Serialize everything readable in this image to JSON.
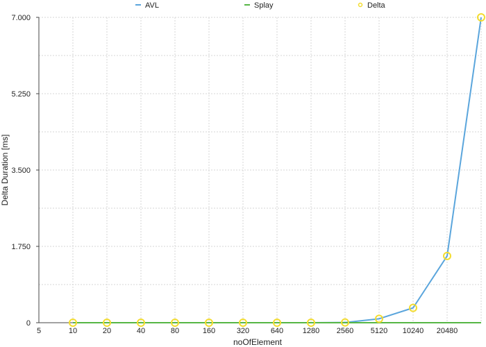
{
  "chart_data": {
    "type": "line",
    "title": "",
    "xlabel": "noOfElement",
    "ylabel": "Delta Duration [ms]",
    "categories": [
      "5",
      "10",
      "20",
      "40",
      "80",
      "160",
      "320",
      "640",
      "1280",
      "2560",
      "5120",
      "10240",
      "20480",
      ""
    ],
    "y_ticks": [
      "0",
      "1.750",
      "3.500",
      "5.250",
      "7.000"
    ],
    "ylim": [
      0,
      7.0
    ],
    "grid": true,
    "legend_position": "top",
    "legend": [
      {
        "label": "AVL",
        "symbol": "line",
        "color": "#5aa5dc"
      },
      {
        "label": "Splay",
        "symbol": "line",
        "color": "#56b645"
      },
      {
        "label": "Delta",
        "symbol": "circle",
        "color": "#f3dc2f"
      }
    ],
    "series": [
      {
        "name": "AVL",
        "color": "#5aa5dc",
        "values": [
          null,
          0,
          0,
          0,
          0,
          0,
          0,
          0,
          0,
          0.005,
          0.09,
          0.34,
          1.53,
          7.0
        ]
      },
      {
        "name": "Splay",
        "color": "#56b645",
        "values": [
          null,
          0,
          0,
          0,
          0,
          0,
          0,
          0,
          0,
          0,
          0,
          0,
          0,
          0
        ]
      },
      {
        "name": "Delta",
        "color": "#f3dc2f",
        "values": [
          null,
          0,
          0,
          0,
          0,
          0,
          0,
          0,
          0,
          0.005,
          0.09,
          0.34,
          1.53,
          7.0
        ]
      }
    ]
  }
}
